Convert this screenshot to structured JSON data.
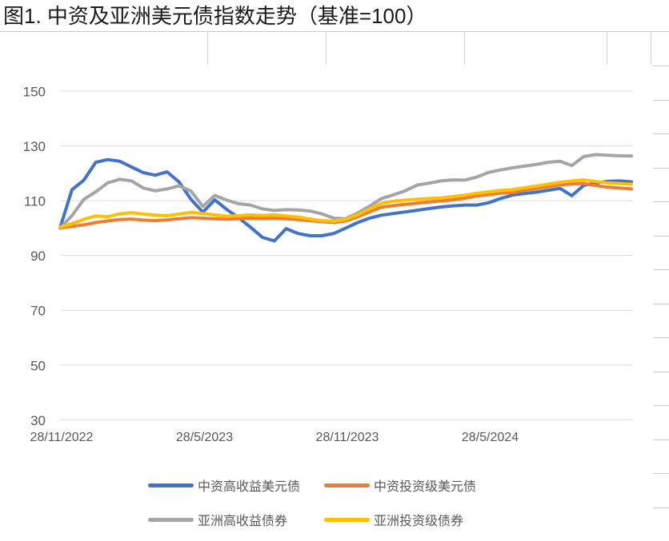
{
  "chart_data": {
    "type": "line",
    "title": "图1. 中资及亚洲美元债指数走势（基准=100）",
    "x_tick_labels": [
      "28/11/2022",
      "28/5/2023",
      "28/11/2023",
      "28/5/2024"
    ],
    "x_tick_positions_months": [
      0,
      6,
      12,
      18
    ],
    "x_range_months": [
      0,
      24
    ],
    "x_sampling_months": 0.5,
    "ylim": [
      30,
      150
    ],
    "y_ticks": [
      150,
      130,
      110,
      90,
      70,
      50,
      30
    ],
    "baseline_value": 100,
    "grid": "horizontal-only",
    "legend_position": "bottom",
    "colors": {
      "axis_label": "#595959",
      "gridline": "#d9d9d9",
      "title_text": "#1a1a1a"
    },
    "series": [
      {
        "id": "china-hy",
        "name": "中资高收益美元债",
        "color": "#4472C4",
        "values": [
          100,
          114,
          117.5,
          124,
          125,
          124.4,
          122.3,
          120.2,
          119.3,
          120.5,
          116.8,
          110.5,
          105.8,
          110.3,
          106.8,
          103.8,
          100.3,
          96.6,
          95.3,
          99.8,
          98,
          97.2,
          97.2,
          98,
          100,
          102,
          103.6,
          104.7,
          105.3,
          105.9,
          106.5,
          107.1,
          107.7,
          108.1,
          108.4,
          108.4,
          109.2,
          110.8,
          112,
          112.6,
          113.1,
          113.8,
          114.5,
          111.8,
          115.6,
          116.4,
          117.1,
          117.2,
          116.9
        ]
      },
      {
        "id": "china-ig",
        "name": "中资投资级美元债",
        "color": "#ED7D31",
        "values": [
          100,
          100.6,
          101.2,
          102,
          102.6,
          103.1,
          103.3,
          102.9,
          102.7,
          103,
          103.4,
          103.8,
          103.6,
          103.4,
          103.2,
          103.4,
          103.6,
          103.5,
          103.6,
          103.4,
          103.1,
          102.7,
          102.3,
          102,
          102.6,
          104.1,
          105.9,
          107.6,
          108.2,
          108.7,
          109.1,
          109.5,
          109.9,
          110.3,
          110.9,
          111.7,
          112.2,
          112.7,
          113,
          113.8,
          114.4,
          115.1,
          115.8,
          116.1,
          116.2,
          115.5,
          114.9,
          114.6,
          114.3
        ]
      },
      {
        "id": "asia-hy",
        "name": "亚洲高收益债券",
        "color": "#A5A5A5",
        "values": [
          100,
          104.5,
          110.5,
          113.2,
          116.5,
          117.8,
          117.2,
          114.6,
          113.6,
          114.3,
          115.4,
          113.5,
          107.9,
          111.9,
          110.2,
          108.9,
          108.4,
          107,
          106.4,
          106.7,
          106.6,
          106.2,
          105.2,
          103.6,
          103.4,
          105.5,
          108,
          110.8,
          112.1,
          113.6,
          115.7,
          116.4,
          117.2,
          117.6,
          117.5,
          118.6,
          120.3,
          121.2,
          122,
          122.6,
          123.2,
          124,
          124.4,
          122.8,
          126.1,
          126.8,
          126.6,
          126.4,
          126.3
        ]
      },
      {
        "id": "asia-ig",
        "name": "亚洲投资级债券",
        "color": "#FFC000",
        "values": [
          100.3,
          101.6,
          103.2,
          104.4,
          104.1,
          105.2,
          105.6,
          105.1,
          104.7,
          104.5,
          105.1,
          105.7,
          105.3,
          104.8,
          104.3,
          104.5,
          104.8,
          104.6,
          104.8,
          104.4,
          104,
          103.3,
          102.7,
          102.5,
          103.2,
          104.9,
          107,
          109,
          109.8,
          110.2,
          110.5,
          110.8,
          111,
          111.5,
          112,
          112.7,
          113.2,
          113.7,
          114,
          114.7,
          115.3,
          116,
          116.7,
          117.2,
          117.6,
          117,
          116.5,
          116.2,
          116
        ]
      }
    ]
  }
}
